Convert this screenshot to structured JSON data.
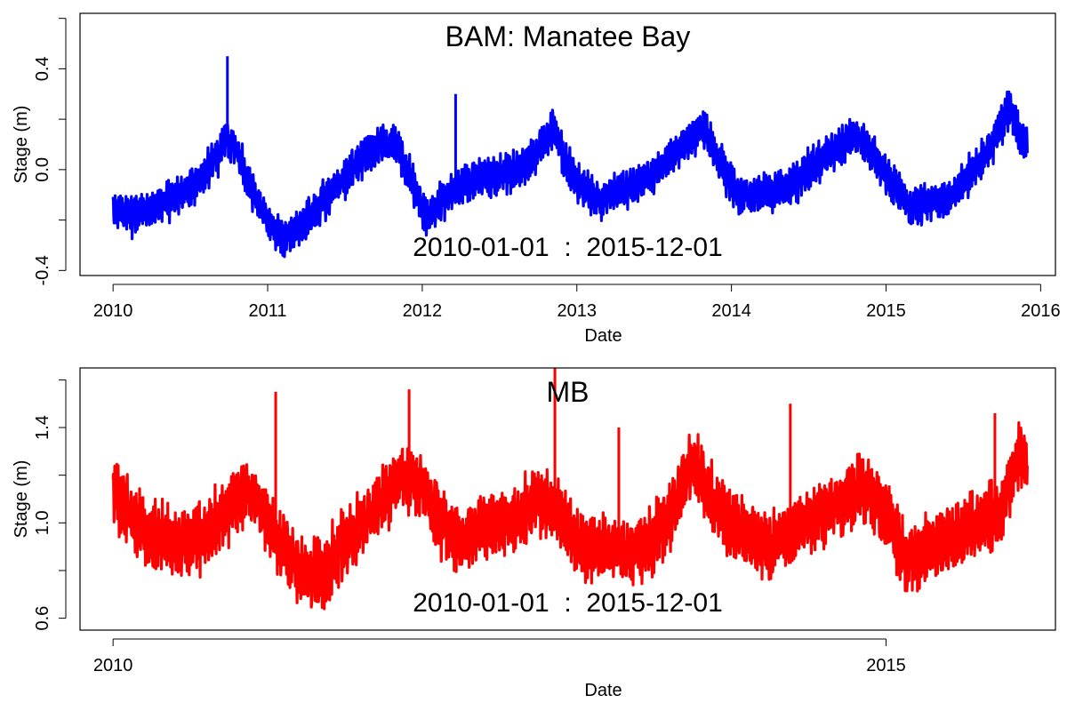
{
  "chart_data": [
    {
      "type": "line",
      "title": "BAM: Manatee Bay",
      "xlabel": "Date",
      "ylabel": "Stage (m)",
      "annotation": "2010-01-01  :  2015-12-01",
      "x_ticks": [
        "2010",
        "2011",
        "2012",
        "2013",
        "2014",
        "2015",
        "2016"
      ],
      "y_ticks": [
        "-0.4",
        "0.0",
        "0.4"
      ],
      "xlim": [
        "2009-10-15",
        "2016-02-05"
      ],
      "ylim": [
        -0.42,
        0.62
      ],
      "grid": false,
      "series": [
        {
          "color": "#0000ff",
          "x": [
            "2010-01-01",
            "2010-02-15",
            "2010-04-01",
            "2010-05-15",
            "2010-07-01",
            "2010-08-15",
            "2010-09-25",
            "2010-10-20",
            "2010-11-15",
            "2011-01-01",
            "2011-02-10",
            "2011-04-01",
            "2011-05-15",
            "2011-07-01",
            "2011-08-15",
            "2011-10-01",
            "2011-11-01",
            "2011-12-01",
            "2012-01-10",
            "2012-02-15",
            "2012-04-01",
            "2012-05-15",
            "2012-07-01",
            "2012-08-15",
            "2012-10-01",
            "2012-11-05",
            "2012-12-01",
            "2013-01-15",
            "2013-03-01",
            "2013-04-15",
            "2013-06-01",
            "2013-07-15",
            "2013-09-01",
            "2013-10-25",
            "2013-12-01",
            "2014-01-15",
            "2014-03-01",
            "2014-04-15",
            "2014-06-01",
            "2014-07-15",
            "2014-09-01",
            "2014-10-25",
            "2014-12-01",
            "2015-01-15",
            "2015-03-01",
            "2015-04-15",
            "2015-06-01",
            "2015-07-15",
            "2015-09-01",
            "2015-10-20",
            "2015-11-10",
            "2015-12-01"
          ],
          "y": [
            -0.16,
            -0.18,
            -0.15,
            -0.12,
            -0.08,
            0.0,
            0.12,
            0.08,
            -0.05,
            -0.2,
            -0.28,
            -0.2,
            -0.12,
            -0.03,
            0.05,
            0.1,
            0.1,
            -0.02,
            -0.2,
            -0.12,
            -0.07,
            -0.03,
            -0.02,
            0.0,
            0.07,
            0.18,
            0.05,
            -0.08,
            -0.12,
            -0.08,
            -0.05,
            0.0,
            0.08,
            0.17,
            0.04,
            -0.1,
            -0.1,
            -0.08,
            -0.05,
            0.02,
            0.08,
            0.13,
            0.06,
            -0.06,
            -0.15,
            -0.12,
            -0.12,
            -0.03,
            0.08,
            0.25,
            0.15,
            0.1
          ],
          "spikes": [
            {
              "x": "2010-09-28",
              "y": 0.45
            },
            {
              "x": "2012-03-20",
              "y": 0.3
            }
          ]
        }
      ]
    },
    {
      "type": "line",
      "title": "MB",
      "xlabel": "Date",
      "ylabel": "Stage (m)",
      "annotation": "2010-01-01  :  2015-12-01",
      "x_ticks": [
        "2010",
        "2015"
      ],
      "y_ticks": [
        "0.6",
        "1.0",
        "1.4"
      ],
      "xlim": [
        "2009-10-15",
        "2016-02-05"
      ],
      "ylim": [
        0.55,
        1.65
      ],
      "grid": false,
      "series": [
        {
          "color": "#ff0000",
          "x": [
            "2010-01-01",
            "2010-02-01",
            "2010-04-01",
            "2010-06-01",
            "2010-08-01",
            "2010-10-01",
            "2010-11-15",
            "2011-01-01",
            "2011-02-15",
            "2011-04-01",
            "2011-05-15",
            "2011-07-01",
            "2011-08-15",
            "2011-10-01",
            "2011-11-15",
            "2012-01-01",
            "2012-02-15",
            "2012-04-01",
            "2012-05-15",
            "2012-07-01",
            "2012-08-15",
            "2012-10-01",
            "2012-11-15",
            "2013-01-01",
            "2013-02-15",
            "2013-04-01",
            "2013-05-15",
            "2013-07-01",
            "2013-08-15",
            "2013-10-01",
            "2013-11-15",
            "2014-01-01",
            "2014-02-15",
            "2014-04-01",
            "2014-05-15",
            "2014-07-01",
            "2014-08-15",
            "2014-10-01",
            "2014-11-15",
            "2015-01-01",
            "2015-02-15",
            "2015-04-01",
            "2015-05-15",
            "2015-07-01",
            "2015-08-15",
            "2015-10-01",
            "2015-11-01",
            "2015-12-01"
          ],
          "y": [
            1.15,
            1.05,
            0.95,
            0.9,
            0.95,
            1.05,
            1.15,
            1.0,
            0.88,
            0.78,
            0.8,
            0.92,
            1.0,
            1.1,
            1.2,
            1.15,
            1.0,
            0.92,
            0.98,
            1.0,
            1.02,
            1.1,
            1.05,
            0.92,
            0.88,
            0.9,
            0.88,
            0.92,
            1.05,
            1.25,
            1.1,
            1.0,
            0.95,
            0.9,
            0.95,
            1.0,
            1.05,
            1.1,
            1.15,
            1.05,
            0.85,
            0.88,
            0.92,
            0.95,
            1.0,
            1.05,
            1.25,
            1.3
          ],
          "spikes": [
            {
              "x": "2011-01-20",
              "y": 1.55
            },
            {
              "x": "2011-12-01",
              "y": 1.56
            },
            {
              "x": "2012-11-10",
              "y": 1.66
            },
            {
              "x": "2013-04-10",
              "y": 1.4
            },
            {
              "x": "2014-05-20",
              "y": 1.5
            },
            {
              "x": "2015-09-15",
              "y": 1.46
            }
          ]
        }
      ]
    }
  ]
}
